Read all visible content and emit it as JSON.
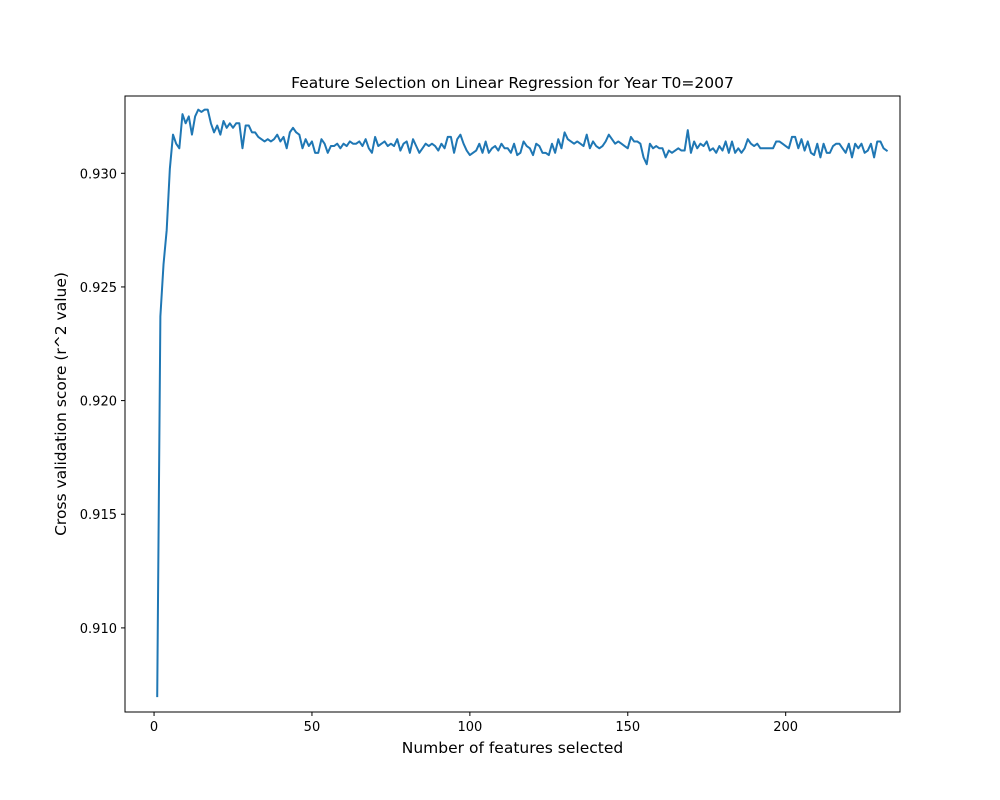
{
  "chart_data": {
    "type": "line",
    "title": "Feature Selection on Linear Regression for Year T0=2007",
    "xlabel": "Number of features selected",
    "ylabel": "Cross validation score (r^2 value)",
    "xlim": [
      -9.2,
      236.2
    ],
    "ylim": [
      0.9063,
      0.9334
    ],
    "xticks": [
      0,
      50,
      100,
      150,
      200
    ],
    "xtick_labels": [
      "0",
      "50",
      "100",
      "150",
      "200"
    ],
    "yticks": [
      0.91,
      0.915,
      0.92,
      0.925,
      0.93
    ],
    "ytick_labels": [
      "0.910",
      "0.915",
      "0.920",
      "0.925",
      "0.930"
    ],
    "grid": false,
    "series": [
      {
        "color": "#1f77b4",
        "x_start": 1,
        "x_step": 1,
        "values": [
          0.907,
          0.9237,
          0.926,
          0.9275,
          0.9302,
          0.9317,
          0.9313,
          0.9311,
          0.9326,
          0.9322,
          0.9325,
          0.9317,
          0.9325,
          0.9328,
          0.9327,
          0.9328,
          0.9328,
          0.9322,
          0.9318,
          0.9321,
          0.9317,
          0.9323,
          0.932,
          0.9322,
          0.932,
          0.9322,
          0.9322,
          0.9311,
          0.9321,
          0.9321,
          0.9318,
          0.9318,
          0.9316,
          0.9315,
          0.9314,
          0.9315,
          0.9314,
          0.9315,
          0.9317,
          0.9314,
          0.9316,
          0.9311,
          0.9318,
          0.932,
          0.9318,
          0.9317,
          0.9311,
          0.9315,
          0.9312,
          0.9314,
          0.9309,
          0.9309,
          0.9315,
          0.9313,
          0.9309,
          0.9312,
          0.9312,
          0.9313,
          0.9311,
          0.9313,
          0.9312,
          0.9314,
          0.9313,
          0.9313,
          0.9314,
          0.9312,
          0.9315,
          0.9311,
          0.9309,
          0.9316,
          0.9312,
          0.9313,
          0.9314,
          0.9312,
          0.9313,
          0.9312,
          0.9315,
          0.931,
          0.9313,
          0.9314,
          0.9309,
          0.9315,
          0.9312,
          0.9309,
          0.9311,
          0.9313,
          0.9312,
          0.9313,
          0.9312,
          0.931,
          0.9313,
          0.9311,
          0.9316,
          0.9316,
          0.9309,
          0.9315,
          0.9317,
          0.9313,
          0.931,
          0.9308,
          0.9309,
          0.931,
          0.9313,
          0.9309,
          0.9314,
          0.9309,
          0.9311,
          0.9312,
          0.931,
          0.9313,
          0.9311,
          0.9311,
          0.9309,
          0.9313,
          0.9308,
          0.9309,
          0.9314,
          0.9312,
          0.9311,
          0.9308,
          0.9313,
          0.9312,
          0.9309,
          0.9309,
          0.9308,
          0.9313,
          0.9309,
          0.9315,
          0.9311,
          0.9318,
          0.9315,
          0.9314,
          0.9313,
          0.9314,
          0.9313,
          0.9312,
          0.9317,
          0.9311,
          0.9314,
          0.9312,
          0.9311,
          0.9312,
          0.9314,
          0.9317,
          0.9315,
          0.9313,
          0.9314,
          0.9313,
          0.9312,
          0.9311,
          0.9316,
          0.9314,
          0.9314,
          0.9313,
          0.9307,
          0.9304,
          0.9313,
          0.9311,
          0.9312,
          0.9311,
          0.9311,
          0.9307,
          0.931,
          0.9309,
          0.931,
          0.9311,
          0.931,
          0.931,
          0.9319,
          0.9309,
          0.9314,
          0.9311,
          0.9313,
          0.9312,
          0.9314,
          0.931,
          0.9311,
          0.9309,
          0.9312,
          0.931,
          0.9314,
          0.9309,
          0.9314,
          0.9309,
          0.9311,
          0.9309,
          0.9311,
          0.9315,
          0.9313,
          0.9312,
          0.9313,
          0.9311,
          0.9311,
          0.9311,
          0.9311,
          0.9311,
          0.9314,
          0.9314,
          0.9313,
          0.9312,
          0.9311,
          0.9316,
          0.9316,
          0.9311,
          0.9315,
          0.931,
          0.9314,
          0.9309,
          0.9308,
          0.9313,
          0.9307,
          0.9313,
          0.9309,
          0.9309,
          0.9312,
          0.9313,
          0.9313,
          0.9311,
          0.9309,
          0.9313,
          0.9307,
          0.9313,
          0.9311,
          0.9313,
          0.9309,
          0.931,
          0.9313,
          0.9307,
          0.9314,
          0.9314,
          0.9311,
          0.931
        ]
      }
    ]
  }
}
